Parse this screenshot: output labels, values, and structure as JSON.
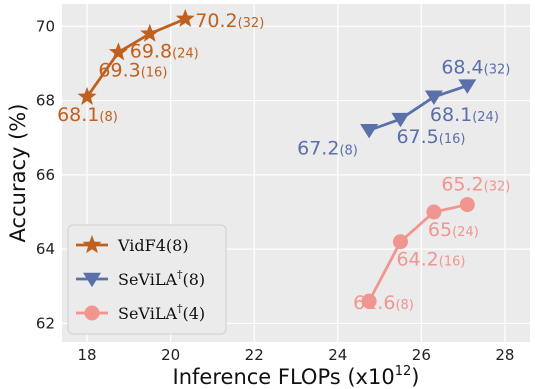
{
  "chart_data": {
    "type": "line",
    "xlabel_main": "Inference FLOPs (x10",
    "xlabel_exp": "12",
    "xlabel_close": ")",
    "ylabel": "Accuracy (%)",
    "xlim": [
      17.4,
      28.6
    ],
    "ylim": [
      61.5,
      70.6
    ],
    "x_ticks": [
      18,
      20,
      22,
      24,
      26,
      28
    ],
    "y_ticks": [
      62,
      64,
      66,
      68,
      70
    ],
    "grid": true,
    "background": "#ebebeb",
    "legend_position": "bottom-left",
    "series": [
      {
        "name": "VidF4(8)",
        "legend_parts": [
          "VidF4(8)",
          "",
          ""
        ],
        "color": "#c0601e",
        "marker": "star",
        "points": [
          {
            "x": 18.0,
            "y": 68.1,
            "label": "68.1",
            "sub": "(8)"
          },
          {
            "x": 18.75,
            "y": 69.3,
            "label": "69.3",
            "sub": "(16)"
          },
          {
            "x": 19.5,
            "y": 69.8,
            "label": "69.8",
            "sub": "(24)"
          },
          {
            "x": 20.35,
            "y": 70.2,
            "label": "70.2",
            "sub": "(32)"
          }
        ]
      },
      {
        "name": "SeViLA†(8)",
        "legend_parts": [
          "SeViLA",
          "†",
          "(8)"
        ],
        "color": "#5a70a8",
        "marker": "triangle-down",
        "points": [
          {
            "x": 24.75,
            "y": 67.2,
            "label": "67.2",
            "sub": "(8)"
          },
          {
            "x": 25.5,
            "y": 67.5,
            "label": "67.5",
            "sub": "(16)"
          },
          {
            "x": 26.3,
            "y": 68.1,
            "label": "68.1",
            "sub": "(24)"
          },
          {
            "x": 27.1,
            "y": 68.4,
            "label": "68.4",
            "sub": "(32)"
          }
        ]
      },
      {
        "name": "SeViLA†(4)",
        "legend_parts": [
          "SeViLA",
          "†",
          "(4)"
        ],
        "color": "#f0958f",
        "marker": "circle",
        "points": [
          {
            "x": 24.75,
            "y": 62.6,
            "label": "62.6",
            "sub": "(8)"
          },
          {
            "x": 25.5,
            "y": 64.2,
            "label": "64.2",
            "sub": "(16)"
          },
          {
            "x": 26.3,
            "y": 65.0,
            "label": "65",
            "sub": "(24)"
          },
          {
            "x": 27.1,
            "y": 65.2,
            "label": "65.2",
            "sub": "(32)"
          }
        ]
      }
    ]
  }
}
